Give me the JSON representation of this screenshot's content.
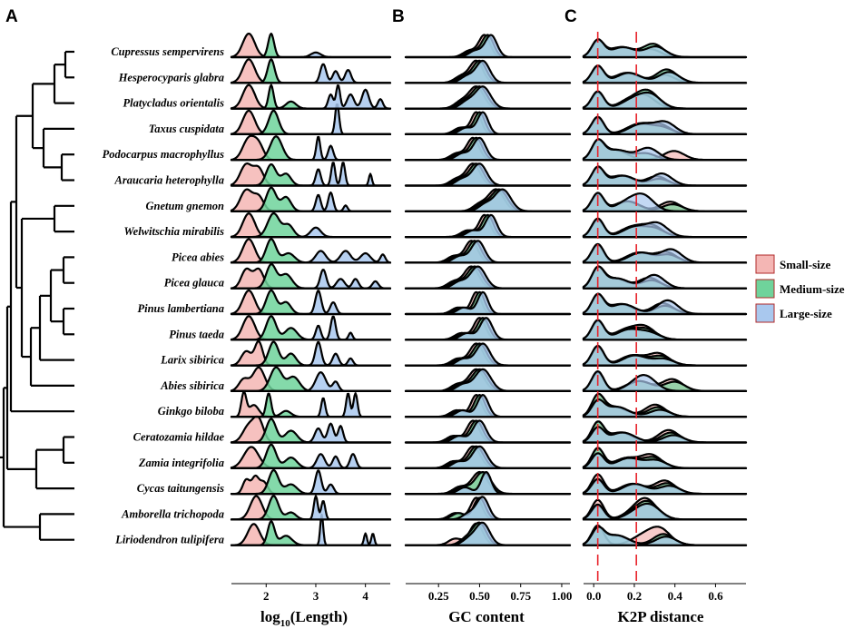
{
  "panels": {
    "a": "A",
    "b": "B",
    "c": "C"
  },
  "legend": [
    {
      "label": "Small-size",
      "color": "#f4b6b4"
    },
    {
      "label": "Medium-size",
      "color": "#6fd39b"
    },
    {
      "label": "Large-size",
      "color": "#a9c8ee"
    }
  ],
  "chart_data": [
    {
      "type": "ridgeline",
      "title": "",
      "xlabel_main": "log",
      "xlabel_sub": "10",
      "xlabel_rest": "(Length)",
      "xlim": [
        1.3,
        4.5
      ],
      "ticks": [
        2,
        3,
        4
      ],
      "species": [
        "Cupressus sempervirens",
        "Hesperocyparis glabra",
        "Platycladus orientalis",
        "Taxus cuspidata",
        "Podocarpus macrophyllus",
        "Araucaria heterophylla",
        "Gnetum gnemon",
        "Welwitschia mirabilis",
        "Picea abies",
        "Picea glauca",
        "Pinus lambertiana",
        "Pinus taeda",
        "Larix sibirica",
        "Abies sibirica",
        "Ginkgo biloba",
        "Ceratozamia hildae",
        "Zamia integrifolia",
        "Cycas taitungensis",
        "Amborella trichopoda",
        "Liriodendron tulipifera"
      ],
      "series": [
        {
          "name": "Small-size",
          "peaks_by_species": [
            [
              [
                1.65,
                1,
                0.12
              ]
            ],
            [
              [
                1.65,
                1,
                0.12
              ]
            ],
            [
              [
                1.65,
                1,
                0.12
              ]
            ],
            [
              [
                1.65,
                1,
                0.12
              ]
            ],
            [
              [
                1.65,
                0.9,
                0.12
              ],
              [
                1.85,
                0.6,
                0.1
              ]
            ],
            [
              [
                1.6,
                0.9,
                0.12
              ],
              [
                1.85,
                0.7,
                0.1
              ]
            ],
            [
              [
                1.6,
                0.9,
                0.12
              ],
              [
                1.85,
                0.6,
                0.1
              ]
            ],
            [
              [
                1.65,
                1,
                0.12
              ]
            ],
            [
              [
                1.65,
                1,
                0.12
              ]
            ],
            [
              [
                1.6,
                0.8,
                0.1
              ],
              [
                1.85,
                0.8,
                0.1
              ]
            ],
            [
              [
                1.65,
                1,
                0.12
              ]
            ],
            [
              [
                1.65,
                1,
                0.12
              ]
            ],
            [
              [
                1.6,
                0.6,
                0.1
              ],
              [
                1.85,
                1,
                0.08
              ]
            ],
            [
              [
                1.55,
                0.5,
                0.1
              ],
              [
                1.85,
                1,
                0.12
              ]
            ],
            [
              [
                1.55,
                1,
                0.05
              ],
              [
                1.75,
                0.5,
                0.1
              ]
            ],
            [
              [
                1.65,
                0.7,
                0.12
              ],
              [
                1.85,
                0.9,
                0.1
              ]
            ],
            [
              [
                1.7,
                0.9,
                0.15
              ]
            ],
            [
              [
                1.6,
                0.6,
                0.07
              ],
              [
                1.78,
                0.7,
                0.07
              ],
              [
                1.95,
                0.5,
                0.08
              ]
            ],
            [
              [
                1.8,
                1,
                0.12
              ]
            ],
            [
              [
                1.75,
                0.9,
                0.12
              ]
            ]
          ]
        },
        {
          "name": "Medium-size",
          "peaks_by_species": [
            [
              [
                2.1,
                1,
                0.06
              ]
            ],
            [
              [
                2.1,
                1,
                0.07
              ]
            ],
            [
              [
                2.1,
                1,
                0.05
              ],
              [
                2.5,
                0.3,
                0.1
              ]
            ],
            [
              [
                2.15,
                1,
                0.1
              ]
            ],
            [
              [
                2.2,
                1,
                0.12
              ]
            ],
            [
              [
                2.1,
                0.9,
                0.1
              ],
              [
                2.4,
                0.5,
                0.1
              ]
            ],
            [
              [
                2.1,
                1,
                0.1
              ],
              [
                2.4,
                0.6,
                0.1
              ]
            ],
            [
              [
                2.15,
                1,
                0.12
              ],
              [
                2.45,
                0.5,
                0.1
              ]
            ],
            [
              [
                2.1,
                1,
                0.1
              ],
              [
                2.45,
                0.4,
                0.12
              ]
            ],
            [
              [
                2.1,
                1,
                0.1
              ],
              [
                2.4,
                0.6,
                0.12
              ]
            ],
            [
              [
                2.1,
                1,
                0.1
              ],
              [
                2.4,
                0.5,
                0.1
              ]
            ],
            [
              [
                2.1,
                1,
                0.1
              ],
              [
                2.5,
                0.5,
                0.12
              ]
            ],
            [
              [
                2.15,
                1,
                0.1
              ],
              [
                2.5,
                0.5,
                0.1
              ]
            ],
            [
              [
                2.2,
                1,
                0.12
              ],
              [
                2.55,
                0.6,
                0.12
              ]
            ],
            [
              [
                2.05,
                1,
                0.05
              ],
              [
                2.4,
                0.25,
                0.1
              ]
            ],
            [
              [
                2.1,
                1,
                0.1
              ],
              [
                2.5,
                0.5,
                0.12
              ]
            ],
            [
              [
                2.1,
                1,
                0.1
              ],
              [
                2.5,
                0.45,
                0.12
              ]
            ],
            [
              [
                2.15,
                1,
                0.1
              ],
              [
                2.5,
                0.4,
                0.12
              ]
            ],
            [
              [
                2.15,
                1,
                0.1
              ],
              [
                2.5,
                0.3,
                0.1
              ]
            ],
            [
              [
                2.1,
                1,
                0.07
              ],
              [
                2.4,
                0.4,
                0.12
              ]
            ]
          ]
        },
        {
          "name": "Large-size",
          "peaks_by_species": [
            [
              [
                3.0,
                0.2,
                0.1
              ]
            ],
            [
              [
                3.15,
                0.8,
                0.06
              ],
              [
                3.4,
                0.5,
                0.06
              ],
              [
                3.65,
                0.55,
                0.06
              ]
            ],
            [
              [
                3.3,
                0.6,
                0.05
              ],
              [
                3.45,
                1,
                0.04
              ],
              [
                3.7,
                0.6,
                0.07
              ],
              [
                4.0,
                0.8,
                0.07
              ],
              [
                4.3,
                0.4,
                0.05
              ]
            ],
            [
              [
                3.43,
                1.3,
                0.04
              ]
            ],
            [
              [
                3.05,
                1,
                0.04
              ],
              [
                3.3,
                0.6,
                0.05
              ]
            ],
            [
              [
                3.05,
                0.7,
                0.05
              ],
              [
                3.35,
                1,
                0.04
              ],
              [
                3.55,
                1,
                0.04
              ],
              [
                4.1,
                0.5,
                0.03
              ]
            ],
            [
              [
                3.05,
                0.7,
                0.05
              ],
              [
                3.3,
                0.8,
                0.05
              ],
              [
                3.6,
                0.25,
                0.04
              ]
            ],
            [
              [
                3.0,
                0.4,
                0.1
              ]
            ],
            [
              [
                3.1,
                0.5,
                0.1
              ],
              [
                3.6,
                0.5,
                0.1
              ],
              [
                4.0,
                0.4,
                0.1
              ],
              [
                4.35,
                0.35,
                0.05
              ]
            ],
            [
              [
                3.15,
                0.8,
                0.06
              ],
              [
                3.5,
                0.4,
                0.08
              ],
              [
                3.8,
                0.4,
                0.06
              ],
              [
                4.2,
                0.3,
                0.06
              ]
            ],
            [
              [
                3.05,
                1,
                0.06
              ],
              [
                3.35,
                0.5,
                0.06
              ]
            ],
            [
              [
                3.05,
                0.6,
                0.05
              ],
              [
                3.35,
                1,
                0.05
              ],
              [
                3.7,
                0.3,
                0.04
              ]
            ],
            [
              [
                3.05,
                1,
                0.06
              ],
              [
                3.4,
                0.5,
                0.06
              ],
              [
                3.7,
                0.3,
                0.05
              ]
            ],
            [
              [
                3.1,
                0.8,
                0.1
              ],
              [
                3.4,
                0.4,
                0.06
              ]
            ],
            [
              [
                3.15,
                0.8,
                0.04
              ],
              [
                3.65,
                1,
                0.04
              ],
              [
                3.8,
                1,
                0.04
              ]
            ],
            [
              [
                3.05,
                0.6,
                0.07
              ],
              [
                3.3,
                0.8,
                0.06
              ],
              [
                3.5,
                0.7,
                0.05
              ]
            ],
            [
              [
                3.1,
                0.6,
                0.08
              ],
              [
                3.4,
                0.5,
                0.06
              ],
              [
                3.75,
                0.6,
                0.06
              ]
            ],
            [
              [
                3.05,
                1,
                0.06
              ],
              [
                3.3,
                0.4,
                0.06
              ]
            ],
            [
              [
                3.0,
                1,
                0.04
              ],
              [
                3.15,
                0.8,
                0.04
              ]
            ],
            [
              [
                3.12,
                1.3,
                0.03
              ],
              [
                4.0,
                0.5,
                0.03
              ],
              [
                4.15,
                0.5,
                0.03
              ]
            ]
          ]
        }
      ]
    },
    {
      "type": "ridgeline",
      "xlabel": "GC content",
      "xlim": [
        0.05,
        1.05
      ],
      "ticks": [
        0.25,
        0.5,
        0.75,
        1.0
      ],
      "tick_labels": [
        "0.25",
        "0.50",
        "0.75",
        "1.00"
      ]
    },
    {
      "type": "ridgeline",
      "xlabel": "K2P distance",
      "xlim": [
        -0.05,
        0.75
      ],
      "ticks": [
        0.0,
        0.2,
        0.4,
        0.6
      ],
      "tick_labels": [
        "0.0",
        "0.2",
        "0.4",
        "0.6"
      ],
      "reference_lines": [
        0.02,
        0.21
      ]
    }
  ]
}
